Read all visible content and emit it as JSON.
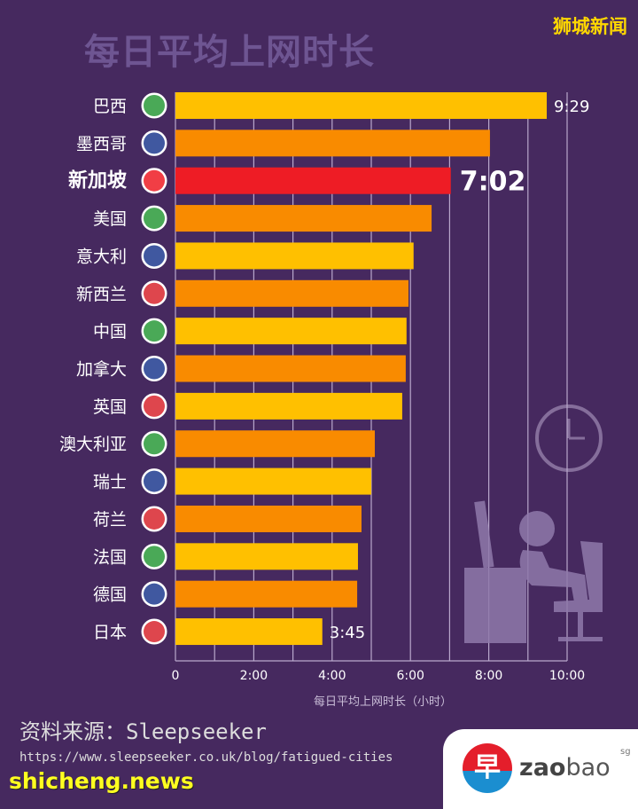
{
  "header": {
    "title": "每日平均上网时长",
    "brand": "狮城新闻"
  },
  "chart_data": {
    "type": "bar",
    "orientation": "horizontal",
    "title": "每日平均上网时长",
    "xlabel": "每日平均上网时长（小时）",
    "xlim": [
      0,
      10
    ],
    "xticks": [
      "0",
      "2:00",
      "4:00",
      "6:00",
      "8:00",
      "10:00"
    ],
    "grid": true,
    "categories": [
      "巴西",
      "墨西哥",
      "新加坡",
      "美国",
      "意大利",
      "新西兰",
      "中国",
      "加拿大",
      "英国",
      "澳大利亚",
      "瑞士",
      "荷兰",
      "法国",
      "德国",
      "日本"
    ],
    "flags": [
      "brazil-flag-icon",
      "mexico-flag-icon",
      "singapore-flag-icon",
      "usa-flag-icon",
      "italy-flag-icon",
      "new-zealand-flag-icon",
      "china-flag-icon",
      "canada-flag-icon",
      "uk-flag-icon",
      "australia-flag-icon",
      "switzerland-flag-icon",
      "netherlands-flag-icon",
      "france-flag-icon",
      "germany-flag-icon",
      "japan-flag-icon"
    ],
    "values": [
      9.48,
      8.03,
      7.03,
      6.54,
      6.08,
      5.95,
      5.9,
      5.88,
      5.79,
      5.09,
      5.0,
      4.75,
      4.66,
      4.64,
      3.75
    ],
    "data_labels": {
      "0": "9:29",
      "2": "7:02",
      "14": "3:45"
    },
    "highlight": "新加坡",
    "colors": {
      "yellow": "#ffc000",
      "orange": "#f98b00",
      "highlight": "#ee1c25",
      "grid": "#b9a8cc",
      "background": "#46295f"
    }
  },
  "footer": {
    "source": "资料来源：Sleepseeker",
    "url": "https://www.sleepseeker.co.uk/blog/fatigued-cities",
    "watermark": "shicheng.news",
    "logo": {
      "char": "早",
      "zao": "zao",
      "bao": "bao",
      "sg": "sg"
    }
  }
}
